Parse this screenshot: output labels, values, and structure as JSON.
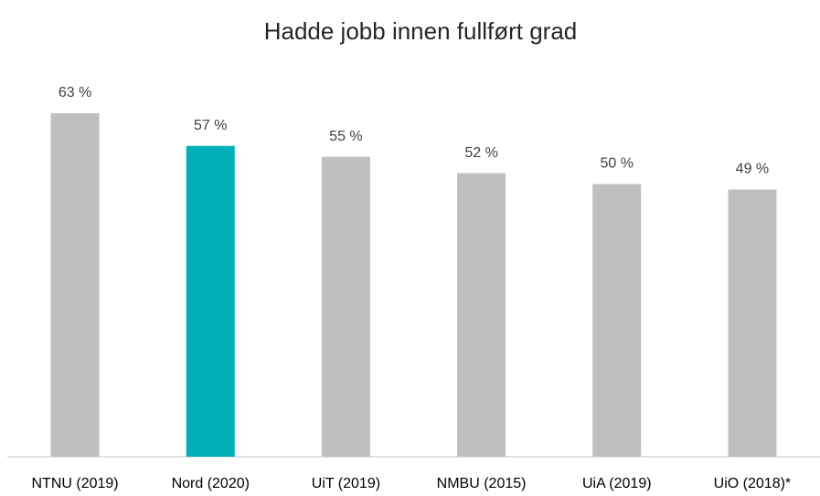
{
  "chart_data": {
    "type": "bar",
    "title": "Hadde jobb innen fullført grad",
    "categories": [
      "NTNU (2019)",
      "Nord (2020)",
      "UiT (2019)",
      "NMBU (2015)",
      "UiA (2019)",
      "UiO (2018)*"
    ],
    "values": [
      63,
      57,
      55,
      52,
      50,
      49
    ],
    "value_labels": [
      "63 %",
      "57 %",
      "55 %",
      "52 %",
      "50 %",
      "49 %"
    ],
    "colors": [
      "#bfbfbf",
      "#00b0b9",
      "#bfbfbf",
      "#bfbfbf",
      "#bfbfbf",
      "#bfbfbf"
    ]
  }
}
